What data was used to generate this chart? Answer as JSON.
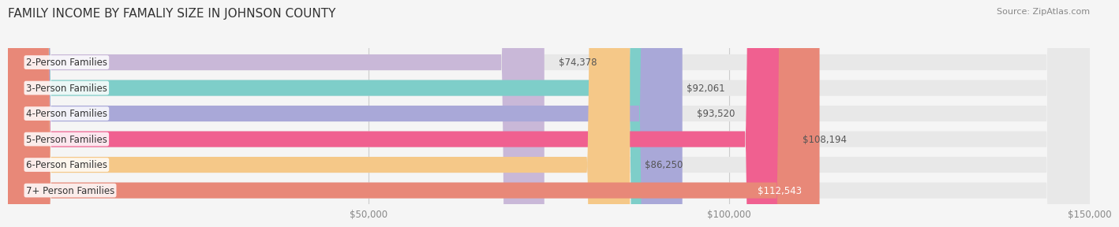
{
  "title": "FAMILY INCOME BY FAMALIY SIZE IN JOHNSON COUNTY",
  "source": "Source: ZipAtlas.com",
  "categories": [
    "2-Person Families",
    "3-Person Families",
    "4-Person Families",
    "5-Person Families",
    "6-Person Families",
    "7+ Person Families"
  ],
  "values": [
    74378,
    92061,
    93520,
    108194,
    86250,
    112543
  ],
  "bar_colors": [
    "#c9b8d8",
    "#7ecec9",
    "#a9a8d8",
    "#f06090",
    "#f5c888",
    "#e88878"
  ],
  "value_labels": [
    "$74,378",
    "$92,061",
    "$93,520",
    "$108,194",
    "$86,250",
    "$112,543"
  ],
  "label_inside": [
    false,
    false,
    false,
    false,
    false,
    true
  ],
  "xlim": [
    0,
    150000
  ],
  "xticks": [
    50000,
    100000,
    150000
  ],
  "xticklabels": [
    "$50,000",
    "$100,000",
    "$150,000"
  ],
  "background_color": "#f5f5f5",
  "bar_bg_color": "#e8e8e8",
  "title_fontsize": 11,
  "source_fontsize": 8,
  "label_fontsize": 8.5,
  "value_fontsize": 8.5
}
